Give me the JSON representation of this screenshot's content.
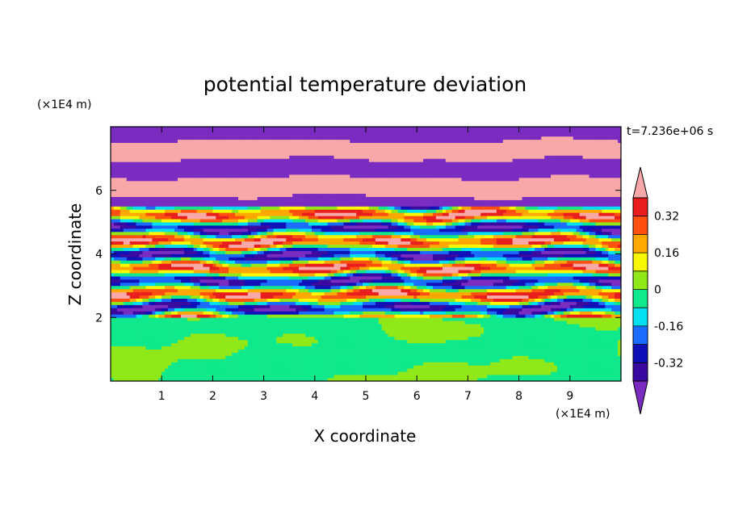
{
  "chart_data": {
    "type": "heatmap",
    "title": "potential temperature deviation",
    "xlabel": "X coordinate",
    "ylabel": "Z coordinate",
    "x_unit": "(×1E4 m)",
    "y_unit": "(×1E4 m)",
    "time_label": "t=7.236e+06 s",
    "xlim": [
      0,
      10
    ],
    "ylim": [
      0,
      8
    ],
    "x_ticks": [
      1,
      2,
      3,
      4,
      5,
      6,
      7,
      8,
      9
    ],
    "y_ticks": [
      2,
      4,
      6
    ],
    "colorbar": {
      "levels": [
        -0.4,
        -0.32,
        -0.24,
        -0.16,
        -0.08,
        0,
        0.08,
        0.16,
        0.24,
        0.32,
        0.4
      ],
      "labels": [
        0.32,
        0.16,
        0,
        -0.16,
        -0.32
      ],
      "extend": "both",
      "colors": [
        "#7b2cc0",
        "#3a0aa0",
        "#0f10b8",
        "#1a6cff",
        "#00e0f0",
        "#10e88c",
        "#90e818",
        "#f8f800",
        "#ffa800",
        "#ff5010",
        "#e81e1e",
        "#f8a8a8"
      ]
    },
    "field_description_bands": [
      {
        "z_range": [
          0,
          2.0
        ],
        "dominant_values": [
          0.0,
          0.05
        ]
      },
      {
        "z_range": [
          2.0,
          5.5
        ],
        "dominant_values": [
          -0.3,
          -0.1,
          0.1,
          0.3
        ]
      },
      {
        "z_range": [
          5.5,
          8.0
        ],
        "dominant_values": [
          -0.45,
          0.45
        ]
      }
    ]
  }
}
